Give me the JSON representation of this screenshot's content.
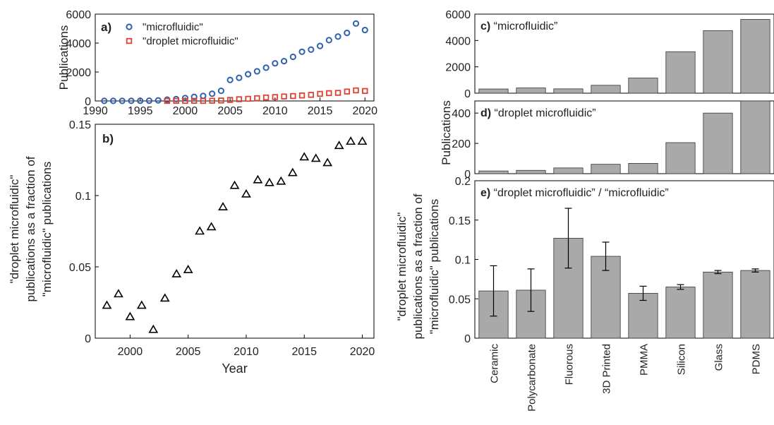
{
  "figure": {
    "shared_ylabel_cd": "Publications"
  },
  "chart_data": [
    {
      "id": "a",
      "panel_label": "a)",
      "type": "scatter",
      "xlim": [
        1990,
        2021
      ],
      "ylim": [
        0,
        6000
      ],
      "xticks": [
        1990,
        1995,
        2000,
        2005,
        2010,
        2015,
        2020
      ],
      "yticks": [
        0,
        2000,
        4000,
        6000
      ],
      "xlabel": "",
      "ylabel": "Publications",
      "legend_position": "top-left",
      "series": [
        {
          "name": "\"microfluidic\"",
          "marker": "circle",
          "color": "#3060b0",
          "x": [
            1991,
            1992,
            1993,
            1994,
            1995,
            1996,
            1997,
            1998,
            1999,
            2000,
            2001,
            2002,
            2003,
            2004,
            2005,
            2006,
            2007,
            2008,
            2009,
            2010,
            2011,
            2012,
            2013,
            2014,
            2015,
            2016,
            2017,
            2018,
            2019,
            2020
          ],
          "y": [
            5,
            5,
            5,
            10,
            15,
            20,
            40,
            90,
            130,
            200,
            280,
            350,
            500,
            700,
            1450,
            1600,
            1850,
            2050,
            2300,
            2600,
            2750,
            3050,
            3400,
            3550,
            3800,
            4200,
            4450,
            4700,
            5350,
            4900
          ]
        },
        {
          "name": "\"droplet microfluidic\"",
          "marker": "square",
          "color": "#e04030",
          "x": [
            1998,
            1999,
            2000,
            2001,
            2002,
            2003,
            2004,
            2005,
            2006,
            2007,
            2008,
            2009,
            2010,
            2011,
            2012,
            2013,
            2014,
            2015,
            2016,
            2017,
            2018,
            2019,
            2020
          ],
          "y": [
            2,
            4,
            3,
            7,
            2,
            15,
            30,
            70,
            120,
            150,
            190,
            240,
            270,
            310,
            340,
            380,
            420,
            490,
            540,
            560,
            650,
            730,
            690
          ]
        }
      ]
    },
    {
      "id": "b",
      "panel_label": "b)",
      "type": "scatter",
      "xlim": [
        1997,
        2021
      ],
      "ylim": [
        0,
        0.15
      ],
      "xticks": [
        2000,
        2005,
        2010,
        2015,
        2020
      ],
      "yticks": [
        "0",
        "0.05",
        "0.1",
        "0.15"
      ],
      "xlabel": "Year",
      "ylabel_lines": [
        "\"droplet microfluidic\"",
        "publications as a fraction of",
        "\"microfluidic\" publications"
      ],
      "series": [
        {
          "marker": "triangle",
          "color": "#000000",
          "x": [
            1998,
            1999,
            2000,
            2001,
            2002,
            2003,
            2004,
            2005,
            2006,
            2007,
            2008,
            2009,
            2010,
            2011,
            2012,
            2013,
            2014,
            2015,
            2016,
            2017,
            2018,
            2019,
            2020
          ],
          "y": [
            0.023,
            0.031,
            0.015,
            0.023,
            0.006,
            0.028,
            0.045,
            0.048,
            0.075,
            0.078,
            0.092,
            0.107,
            0.101,
            0.111,
            0.109,
            0.11,
            0.116,
            0.127,
            0.126,
            0.123,
            0.135,
            0.138,
            0.138
          ]
        }
      ]
    },
    {
      "id": "c",
      "panel_label": "c)",
      "title": "“microfluidic”",
      "type": "bar",
      "categories": [
        "Ceramic",
        "Polycarbonate",
        "Fluorous",
        "3D Printed",
        "PMMA",
        "Silicon",
        "Glass",
        "PDMS"
      ],
      "values": [
        320,
        400,
        330,
        600,
        1150,
        3150,
        4750,
        5600
      ],
      "ylim": [
        0,
        6000
      ],
      "yticks": [
        0,
        2000,
        4000,
        6000
      ],
      "color": "#a9a9a9"
    },
    {
      "id": "d",
      "panel_label": "d)",
      "title": "“droplet microfluidic”",
      "type": "bar",
      "categories": [
        "Ceramic",
        "Polycarbonate",
        "Fluorous",
        "3D Printed",
        "PMMA",
        "Silicon",
        "Glass",
        "PDMS"
      ],
      "values": [
        18,
        22,
        38,
        62,
        68,
        205,
        400,
        480
      ],
      "ylim": [
        0,
        480
      ],
      "yticks": [
        0,
        200,
        400
      ],
      "color": "#a9a9a9"
    },
    {
      "id": "e",
      "panel_label": "e)",
      "title": "“droplet microfluidic” / “microfluidic”",
      "type": "bar",
      "categories": [
        "Ceramic",
        "Polycarbonate",
        "Fluorous",
        "3D Printed",
        "PMMA",
        "Silicon",
        "Glass",
        "PDMS"
      ],
      "values": [
        0.06,
        0.061,
        0.127,
        0.104,
        0.057,
        0.065,
        0.084,
        0.086
      ],
      "error": [
        0.032,
        0.027,
        0.038,
        0.018,
        0.009,
        0.003,
        0.002,
        0.002
      ],
      "ylim": [
        0,
        0.2
      ],
      "yticks": [
        "0",
        "0.05",
        "0.1",
        "0.15",
        "0.2"
      ],
      "ylabel_lines": [
        "\"droplet microfluidic\"",
        "publications as a fraction of",
        "\"microfluidic\" publications"
      ],
      "color": "#a9a9a9"
    }
  ]
}
